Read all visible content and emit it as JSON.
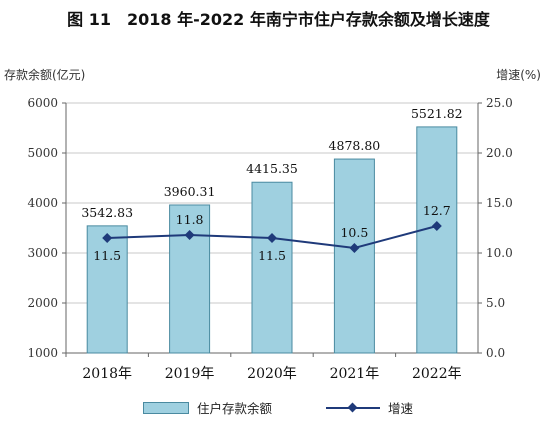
{
  "title": "图 11　2018 年-2022 年南宁市住户存款余额及增长速度",
  "left_axis_label": "存款余额(亿元)",
  "right_axis_label": "增速(%)",
  "legend": {
    "bar": "住户存款余额",
    "line": "增速"
  },
  "colors": {
    "bar_fill": "#9fd0e0",
    "bar_stroke": "#4a8aa0",
    "line": "#1f3a7a",
    "grid": "#c8c8c8"
  },
  "chart_data": {
    "type": "bar",
    "categories": [
      "2018年",
      "2019年",
      "2020年",
      "2021年",
      "2022年"
    ],
    "series": [
      {
        "name": "住户存款余额",
        "type": "bar",
        "axis": "left",
        "values": [
          3542.83,
          3960.31,
          4415.35,
          4878.8,
          5521.82
        ],
        "labels": [
          "3542.83",
          "3960.31",
          "4415.35",
          "4878.80",
          "5521.82"
        ]
      },
      {
        "name": "增速",
        "type": "line",
        "axis": "right",
        "values": [
          11.5,
          11.8,
          11.5,
          10.5,
          12.7
        ],
        "labels": [
          "11.5",
          "11.8",
          "11.5",
          "10.5",
          "12.7"
        ]
      }
    ],
    "ylim_left": [
      1000,
      6000
    ],
    "yticks_left": [
      "1000",
      "2000",
      "3000",
      "4000",
      "5000",
      "6000"
    ],
    "ylim_right": [
      0,
      25
    ],
    "yticks_right": [
      "0.0",
      "5.0",
      "10.0",
      "15.0",
      "20.0",
      "25.0"
    ],
    "grid": "horizontal",
    "legend_position": "bottom"
  }
}
